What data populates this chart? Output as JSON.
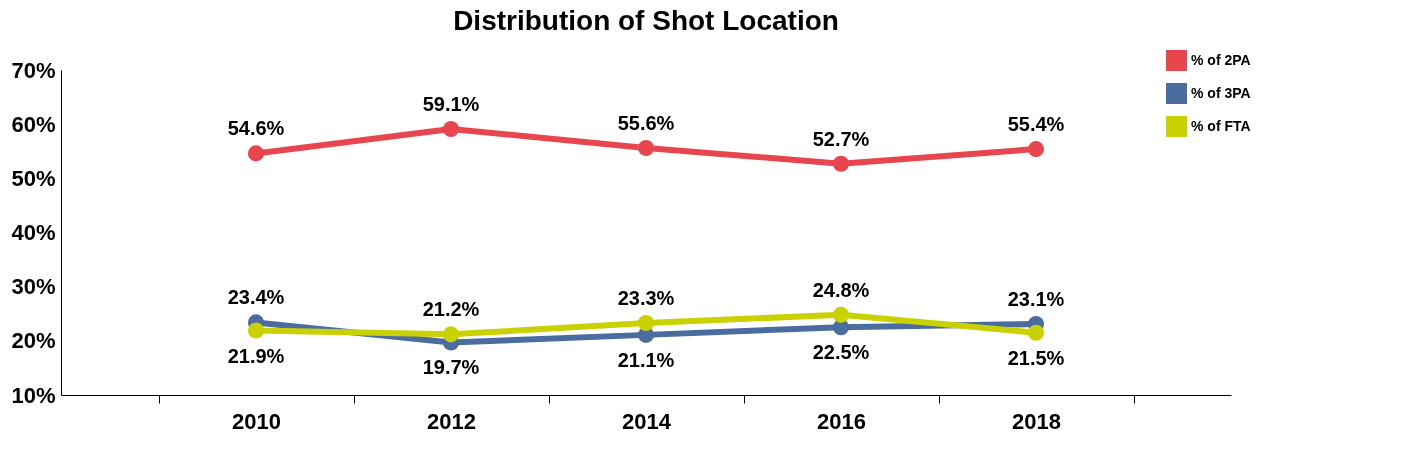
{
  "chart_data": {
    "type": "line",
    "title": "Distribution of Shot Location",
    "categories": [
      "2010",
      "2012",
      "2014",
      "2016",
      "2018"
    ],
    "series": [
      {
        "name": "% of 2PA",
        "color": "#e8464e",
        "values": [
          54.6,
          59.1,
          55.6,
          52.7,
          55.4
        ],
        "value_labels": [
          "54.6%",
          "59.1%",
          "55.6%",
          "52.7%",
          "55.4%"
        ]
      },
      {
        "name": "% of 3PA",
        "color": "#4a6c9e",
        "values": [
          23.4,
          19.7,
          21.1,
          22.5,
          23.1
        ],
        "value_labels": [
          "23.4%",
          "19.7%",
          "21.1%",
          "22.5%",
          "23.1%"
        ]
      },
      {
        "name": "% of FTA",
        "color": "#c9d200",
        "values": [
          21.9,
          21.2,
          23.3,
          24.8,
          21.5
        ],
        "value_labels": [
          "21.9%",
          "21.2%",
          "23.3%",
          "24.8%",
          "21.5%"
        ]
      }
    ],
    "ylim": [
      10,
      70
    ],
    "yticks": [
      {
        "value": 10,
        "label": "10%"
      },
      {
        "value": 20,
        "label": "20%"
      },
      {
        "value": 30,
        "label": "30%"
      },
      {
        "value": 40,
        "label": "40%"
      },
      {
        "value": 50,
        "label": "50%"
      },
      {
        "value": 60,
        "label": "60%"
      },
      {
        "value": 70,
        "label": "70%"
      }
    ],
    "grid": false,
    "legend": "top right",
    "marker": "circle",
    "line_style": "solid"
  }
}
